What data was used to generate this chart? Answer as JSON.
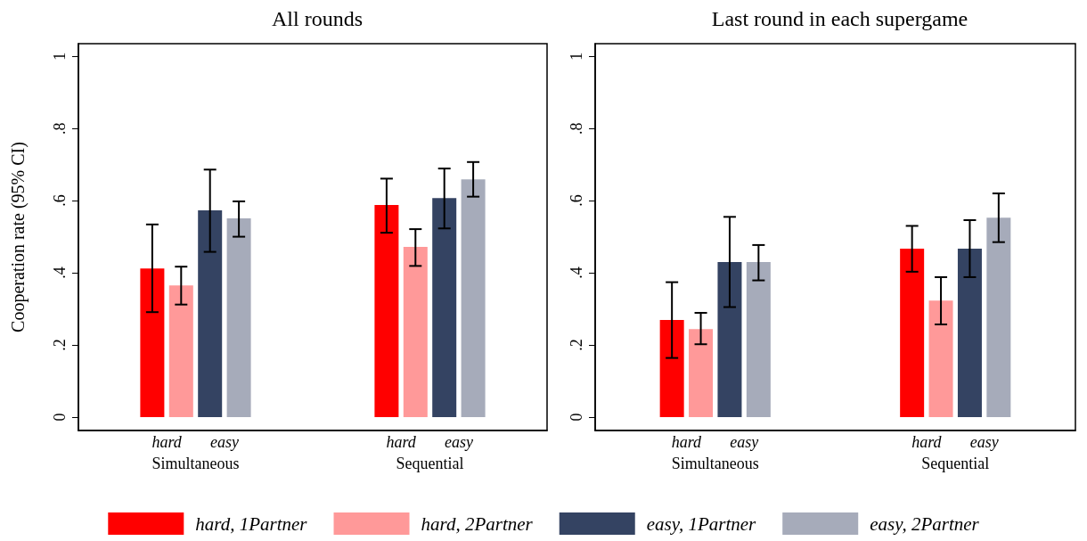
{
  "chart_data": [
    {
      "type": "bar",
      "title": "All rounds",
      "ylabel": "Cooperation rate (95% CI)",
      "categories": [
        "Simultaneous",
        "Sequential"
      ],
      "series": [
        {
          "name": "hard, 1Partner",
          "color": "#ff0000",
          "values": [
            0.412,
            0.588
          ],
          "errors": [
            [
              0.291,
              0.534
            ],
            [
              0.511,
              0.661
            ]
          ]
        },
        {
          "name": "hard, 2Partner",
          "color": "#ff9999",
          "values": [
            0.365,
            0.472
          ],
          "errors": [
            [
              0.312,
              0.417
            ],
            [
              0.419,
              0.521
            ]
          ]
        },
        {
          "name": "easy, 1Partner",
          "color": "#344362",
          "values": [
            0.573,
            0.607
          ],
          "errors": [
            [
              0.458,
              0.686
            ],
            [
              0.523,
              0.689
            ]
          ]
        },
        {
          "name": "easy, 2Partner",
          "color": "#a6abba",
          "values": [
            0.551,
            0.659
          ],
          "errors": [
            [
              0.5,
              0.598
            ],
            [
              0.611,
              0.707
            ]
          ]
        }
      ],
      "annotations": [
        "hard",
        "easy",
        "hard",
        "easy"
      ],
      "ylim": [
        -0.037,
        1.035
      ],
      "yticks": [
        {
          "value": 0,
          "label": "0"
        },
        {
          "value": 0.2,
          "label": ".2"
        },
        {
          "value": 0.4,
          "label": ".4"
        },
        {
          "value": 0.6,
          "label": ".6"
        },
        {
          "value": 0.8,
          "label": ".8"
        },
        {
          "value": 1,
          "label": "1"
        }
      ],
      "grid": false,
      "legend": "bottom"
    },
    {
      "type": "bar",
      "title": "Last round in each supergame",
      "categories": [
        "Simultaneous",
        "Sequential"
      ],
      "series": [
        {
          "color": "#ff0000",
          "values": [
            0.269,
            0.467
          ],
          "errors": [
            [
              0.164,
              0.374
            ],
            [
              0.403,
              0.53
            ]
          ]
        },
        {
          "color": "#ff9999",
          "values": [
            0.244,
            0.323
          ],
          "errors": [
            [
              0.202,
              0.289
            ],
            [
              0.257,
              0.388
            ]
          ]
        },
        {
          "color": "#344362",
          "values": [
            0.43,
            0.467
          ],
          "errors": [
            [
              0.305,
              0.555
            ],
            [
              0.388,
              0.546
            ]
          ]
        },
        {
          "color": "#a6abba",
          "values": [
            0.43,
            0.553
          ],
          "errors": [
            [
              0.379,
              0.477
            ],
            [
              0.485,
              0.62
            ]
          ]
        }
      ],
      "annotations": [
        "hard",
        "easy",
        "hard",
        "easy"
      ],
      "ylim": [
        -0.037,
        1.035
      ],
      "yticks": [
        {
          "value": 0,
          "label": "0"
        },
        {
          "value": 0.2,
          "label": ".2"
        },
        {
          "value": 0.4,
          "label": ".4"
        },
        {
          "value": 0.6,
          "label": ".6"
        },
        {
          "value": 0.8,
          "label": ".8"
        },
        {
          "value": 1,
          "label": "1"
        }
      ],
      "grid": false
    }
  ]
}
